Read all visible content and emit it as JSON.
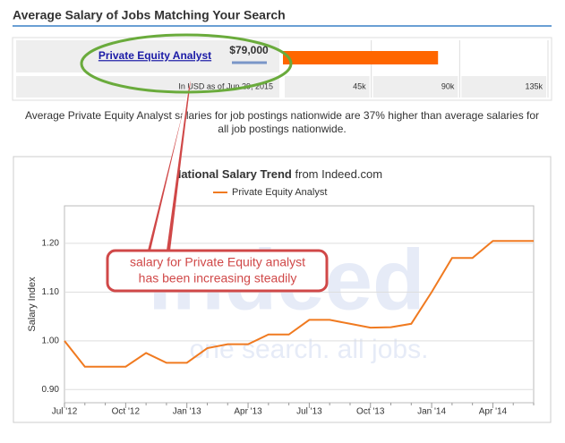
{
  "header": {
    "title": "Average Salary of Jobs Matching Your Search"
  },
  "salary_scale": {
    "job": "Private Equity Analyst",
    "value": 79000,
    "value_label": "$79,000",
    "note": "In USD as of Jun 29, 2015",
    "color": "#ff6600",
    "xlim": [
      0,
      135000
    ],
    "xticks": [
      {
        "value": 45000,
        "label": "45k"
      },
      {
        "value": 90000,
        "label": "90k"
      },
      {
        "value": 135000,
        "label": "135k"
      }
    ]
  },
  "description": [
    "Average Private Equity Analyst salaries for job postings nationwide are 37% higher than average salaries for",
    "all job postings nationwide."
  ],
  "annotation": [
    "salary for Private Equity analyst",
    "has been increasing steadily"
  ],
  "watermark": [
    "indeed",
    "one search. all jobs."
  ],
  "chart_data": {
    "type": "line",
    "title": "National Salary Trend",
    "source": "from Indeed.com",
    "y_label": "Salary Index",
    "categories": [
      "Jul '12",
      null,
      null,
      "Oct '12",
      null,
      null,
      "Jan '13",
      null,
      null,
      "Apr '13",
      null,
      null,
      "Jul '13",
      null,
      null,
      "Oct '13",
      null,
      null,
      "Jan '14",
      null,
      null,
      "Apr '14",
      null,
      null
    ],
    "series": [
      {
        "name": "Private Equity Analyst",
        "color": "#f07a20",
        "values": [
          1.0,
          0.947,
          0.947,
          0.947,
          0.975,
          0.955,
          0.955,
          0.985,
          0.993,
          0.993,
          1.013,
          1.013,
          1.043,
          1.043,
          1.035,
          1.027,
          1.028,
          1.035,
          1.1,
          1.17,
          1.17,
          1.205,
          1.205,
          1.205
        ]
      }
    ],
    "ylim": [
      0.873,
      1.277
    ],
    "yticks": [
      {
        "value": 0.9,
        "label": "0.90"
      },
      {
        "value": 1.0,
        "label": "1.00"
      },
      {
        "value": 1.1,
        "label": "1.10"
      },
      {
        "value": 1.2,
        "label": "1.20"
      }
    ],
    "grid": true
  }
}
